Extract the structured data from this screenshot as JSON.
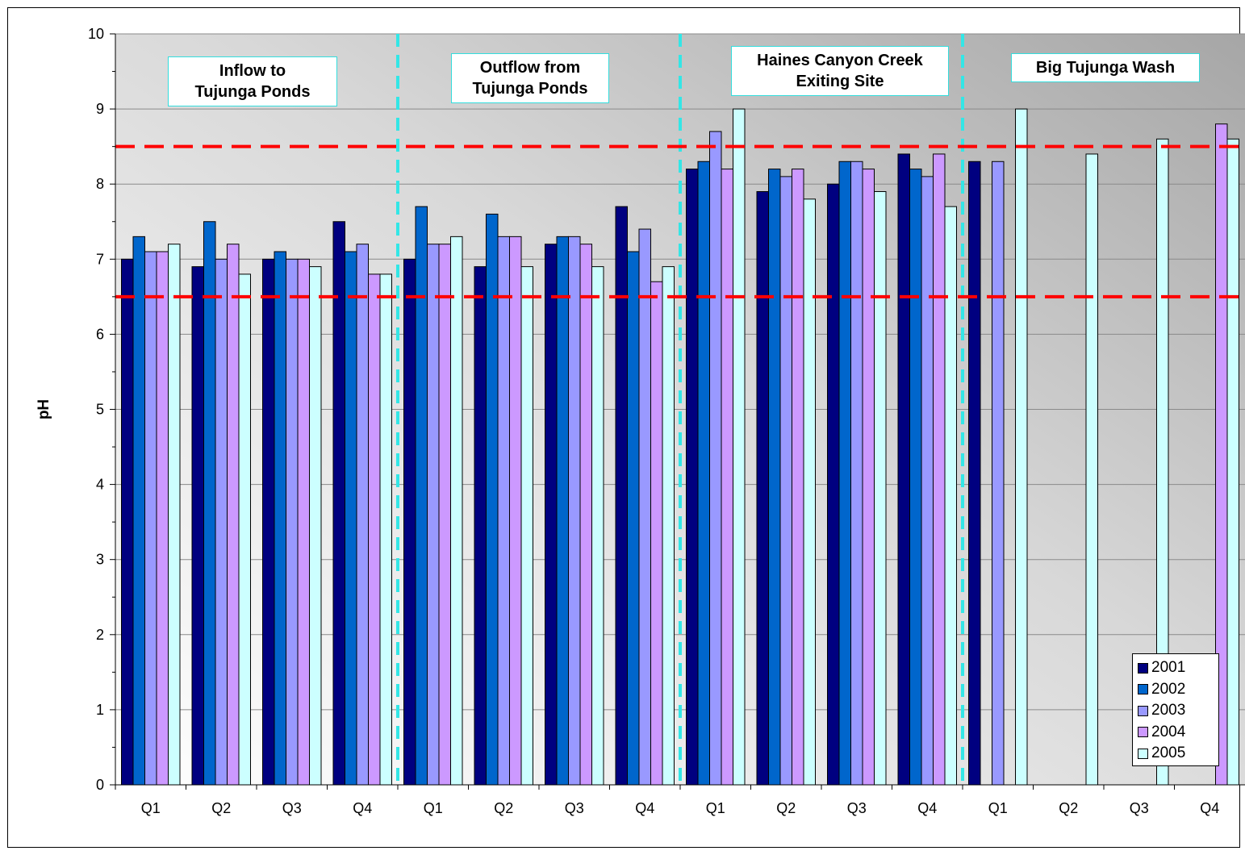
{
  "chart_data": {
    "type": "bar",
    "title": "",
    "xlabel": "",
    "ylabel": "pH",
    "ylim": [
      0,
      10
    ],
    "yticks": [
      "0",
      "1",
      "2",
      "3",
      "4",
      "5",
      "6",
      "7",
      "8",
      "9",
      "10"
    ],
    "categories": [
      "Q1",
      "Q2",
      "Q3",
      "Q4",
      "Q1",
      "Q2",
      "Q3",
      "Q4",
      "Q1",
      "Q2",
      "Q3",
      "Q4",
      "Q1",
      "Q2",
      "Q3",
      "Q4"
    ],
    "groups": [
      {
        "label": "Inflow to\nTujunga Ponds",
        "categories": [
          0,
          3
        ]
      },
      {
        "label": "Outflow from\nTujunga Ponds",
        "categories": [
          4,
          7
        ]
      },
      {
        "label": "Haines Canyon Creek\nExiting Site",
        "categories": [
          8,
          11
        ]
      },
      {
        "label": "Big Tujunga Wash",
        "categories": [
          12,
          15
        ]
      }
    ],
    "reference_lines": [
      {
        "y": 8.5,
        "color": "#ff0000",
        "style": "dashed"
      },
      {
        "y": 6.5,
        "color": "#ff0000",
        "style": "dashed"
      }
    ],
    "series": [
      {
        "name": "2001",
        "color": "#000080",
        "values": [
          7.0,
          6.9,
          7.0,
          7.5,
          7.0,
          6.9,
          7.2,
          7.7,
          8.2,
          7.9,
          8.0,
          8.4,
          8.3,
          null,
          null,
          null
        ]
      },
      {
        "name": "2002",
        "color": "#0066cc",
        "values": [
          7.3,
          7.5,
          7.1,
          7.1,
          7.7,
          7.6,
          7.3,
          7.1,
          8.3,
          8.2,
          8.3,
          8.2,
          null,
          null,
          null,
          null
        ]
      },
      {
        "name": "2003",
        "color": "#9999ff",
        "values": [
          7.1,
          7.0,
          7.0,
          7.2,
          7.2,
          7.3,
          7.3,
          7.4,
          8.7,
          8.1,
          8.3,
          8.1,
          8.3,
          null,
          null,
          null
        ]
      },
      {
        "name": "2004",
        "color": "#cc99ff",
        "values": [
          7.1,
          7.2,
          7.0,
          6.8,
          7.2,
          7.3,
          7.2,
          6.7,
          8.2,
          8.2,
          8.2,
          8.4,
          null,
          null,
          null,
          8.8
        ]
      },
      {
        "name": "2005",
        "color": "#ccffff",
        "values": [
          7.2,
          6.8,
          6.9,
          6.8,
          7.3,
          6.9,
          6.9,
          6.9,
          9.0,
          7.8,
          7.9,
          7.7,
          9.0,
          8.4,
          8.6,
          8.6
        ]
      }
    ],
    "legend": {
      "position": "bottom-right"
    },
    "grid": true
  }
}
